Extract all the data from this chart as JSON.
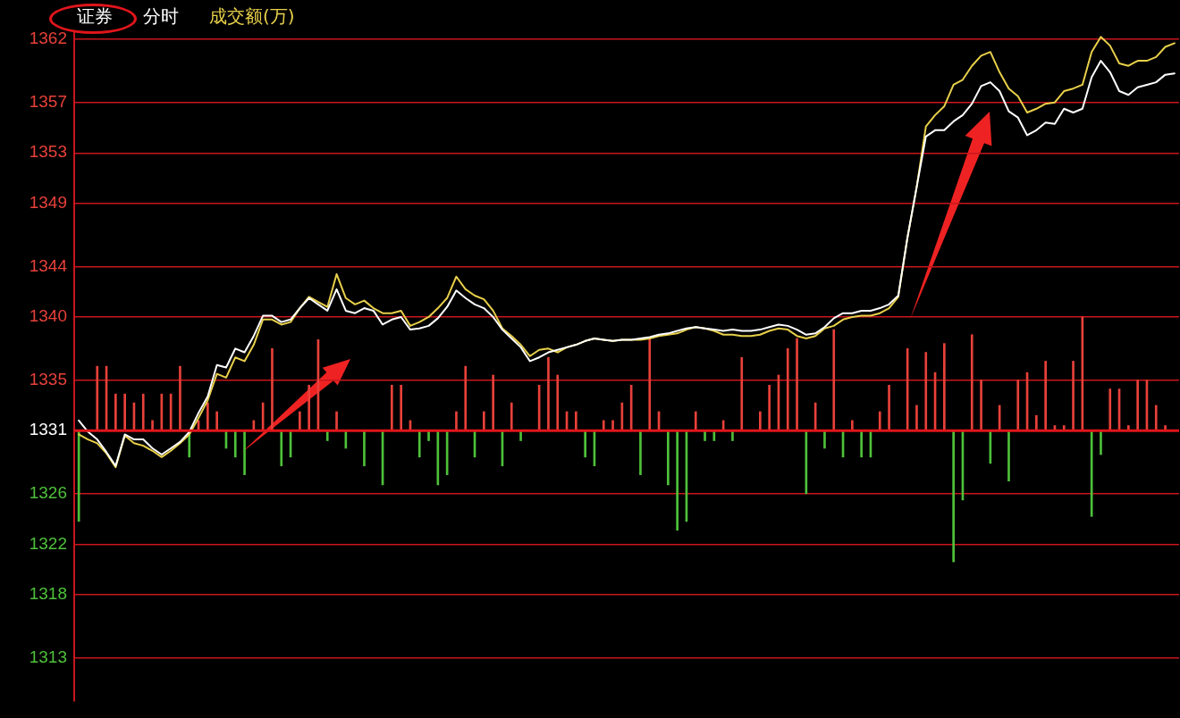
{
  "chart_data": {
    "type": "line",
    "title": "证券",
    "subtitle": "分时",
    "annotations": [
      "成交额(万)"
    ],
    "categories": [
      null,
      null,
      null,
      null,
      null,
      null,
      null,
      null,
      null,
      null,
      null,
      null,
      null,
      null,
      null,
      null,
      null,
      null,
      null,
      null,
      null,
      null,
      null,
      null,
      null,
      null,
      null,
      null,
      null,
      null,
      null,
      null,
      null,
      null,
      null,
      null,
      null,
      null,
      null,
      null,
      null,
      null,
      null,
      null,
      null,
      null,
      null,
      null,
      null,
      null,
      null,
      null,
      null,
      null,
      null,
      null,
      null,
      null,
      null,
      null,
      null,
      null,
      null,
      null,
      null,
      null,
      null,
      null,
      null,
      null,
      null,
      null,
      null,
      null,
      null,
      null,
      null,
      null,
      null,
      null,
      null,
      null,
      null,
      null,
      null,
      null,
      null,
      null,
      null,
      null,
      null,
      null,
      null,
      null,
      null,
      null,
      null,
      null,
      null,
      null,
      null,
      null,
      null,
      null,
      null,
      null,
      null,
      null,
      null,
      null,
      null,
      null,
      null,
      null,
      null,
      null,
      null,
      null,
      null,
      null
    ],
    "series": [
      {
        "type": "bar",
        "values": [
          -7.2,
          null,
          5.1,
          5.1,
          2.9,
          2.9,
          2.2,
          2.9,
          0.8,
          2.9,
          2.9,
          5.1,
          -2.1,
          0.8,
          2.2,
          1.5,
          -1.4,
          -2.1,
          -3.5,
          0.8,
          2.2,
          6.5,
          -2.8,
          -2.1,
          1.5,
          3.6,
          7.2,
          -0.8,
          1.5,
          -1.4,
          null,
          -2.8,
          null,
          -4.3,
          3.6,
          3.6,
          0.8,
          -2.1,
          -0.8,
          -4.3,
          -3.5,
          1.5,
          5.1,
          -2.1,
          1.5,
          4.4,
          -2.8,
          2.2,
          -0.8,
          null,
          3.6,
          5.8,
          4.4,
          1.5,
          1.5,
          -2.1,
          -2.8,
          0.8,
          0.8,
          2.2,
          3.6,
          -3.5,
          7.3,
          1.5,
          -4.3,
          -7.9,
          -7.2,
          1.5,
          -0.8,
          -0.8,
          0.8,
          -0.8,
          5.8,
          null,
          1.5,
          3.6,
          4.4,
          6.5,
          7.3,
          -5.0,
          2.2,
          -1.4,
          8.0,
          -2.1,
          0.8,
          -2.1,
          -2.1,
          1.5,
          3.6,
          null,
          6.5,
          2.0,
          6.2,
          4.6,
          6.9,
          -10.4,
          -5.5,
          7.6,
          4.0,
          -2.6,
          2.0,
          -4.0,
          4.0,
          4.6,
          1.2,
          5.5,
          0.4,
          0.4,
          5.5,
          9.0,
          -6.8,
          -1.9,
          3.3,
          3.3,
          0.4,
          4.0,
          4.0,
          2.0,
          0.4,
          null
        ],
        "colors": [
          "#4ec13a",
          null,
          "#e8413a",
          "#e8413a",
          "#e8413a",
          "#e8413a",
          "#e8413a",
          "#e8413a",
          "#e8413a",
          "#e8413a",
          "#e8413a",
          "#e8413a",
          "#4ec13a",
          "#e8413a",
          "#e8413a",
          "#e8413a",
          "#4ec13a",
          "#4ec13a",
          "#4ec13a",
          "#e8413a",
          "#e8413a",
          "#e8413a",
          "#4ec13a",
          "#4ec13a",
          "#e8413a",
          "#e8413a",
          "#e8413a",
          "#4ec13a",
          "#e8413a",
          "#4ec13a",
          null,
          "#4ec13a",
          null,
          "#4ec13a",
          "#e8413a",
          "#e8413a",
          "#e8413a",
          "#4ec13a",
          "#4ec13a",
          "#4ec13a",
          "#4ec13a",
          "#e8413a",
          "#e8413a",
          "#4ec13a",
          "#e8413a",
          "#e8413a",
          "#4ec13a",
          "#e8413a",
          "#4ec13a",
          null,
          "#e8413a",
          "#e8413a",
          "#e8413a",
          "#e8413a",
          "#e8413a",
          "#4ec13a",
          "#4ec13a",
          "#e8413a",
          "#e8413a",
          "#e8413a",
          "#e8413a",
          "#4ec13a",
          "#e8413a",
          "#e8413a",
          "#4ec13a",
          "#4ec13a",
          "#4ec13a",
          "#e8413a",
          "#4ec13a",
          "#4ec13a",
          "#e8413a",
          "#4ec13a",
          "#e8413a",
          null,
          "#e8413a",
          "#e8413a",
          "#e8413a",
          "#e8413a",
          "#e8413a",
          "#4ec13a",
          "#e8413a",
          "#4ec13a",
          "#e8413a",
          "#4ec13a",
          "#e8413a",
          "#4ec13a",
          "#4ec13a",
          "#e8413a",
          "#e8413a",
          null,
          "#e8413a",
          "#e8413a",
          "#e8413a",
          "#e8413a",
          "#e8413a",
          "#4ec13a",
          "#4ec13a",
          "#e8413a",
          "#e8413a",
          "#4ec13a",
          "#e8413a",
          "#4ec13a",
          "#e8413a",
          "#e8413a",
          "#e8413a",
          "#e8413a",
          "#e8413a",
          "#e8413a",
          "#e8413a",
          "#e8413a",
          "#4ec13a",
          "#4ec13a",
          "#e8413a",
          "#e8413a",
          "#e8413a",
          "#e8413a",
          "#e8413a",
          "#e8413a",
          "#e8413a",
          null
        ],
        "base": [
          1331,
          null,
          1331,
          1331,
          1331,
          1331,
          1331,
          1331,
          1331,
          1331,
          1331,
          1331,
          1331,
          1331,
          1331,
          1331,
          1331,
          1331,
          1331,
          1331,
          1331,
          1331,
          1331,
          1331,
          1331,
          1331,
          1331,
          1331,
          1331,
          1331,
          null,
          1331,
          null,
          1331,
          1331,
          1331,
          1331,
          1331,
          1331,
          1331,
          1331,
          1331,
          1331,
          1331,
          1331,
          1331,
          1331,
          1331,
          1331,
          null,
          1331,
          1331,
          1331,
          1331,
          1331,
          1331,
          1331,
          1331,
          1331,
          1331,
          1331,
          1331,
          1331,
          1331,
          1331,
          1331,
          1331,
          1331,
          1331,
          1331,
          1331,
          1331,
          1331,
          null,
          1331,
          1331,
          1331,
          1331,
          1331,
          1331,
          1331,
          1331,
          1331,
          1331,
          1331,
          1331,
          1331,
          1331,
          1331,
          null,
          1331,
          1331,
          1331,
          1331,
          1331,
          1331,
          1331,
          1331,
          1331,
          1331,
          1331,
          1331,
          1331,
          1331,
          1331,
          1331,
          1331,
          1331,
          1331,
          1331,
          1331,
          1331,
          1331,
          1331,
          1331,
          1331,
          1331,
          1331,
          1331,
          null
        ]
      },
      {
        "color": "#ffffff",
        "values": [
          1331.8,
          1330.9,
          1330.3,
          1329.3,
          1328.2,
          1330.7,
          1330.3,
          1330.3,
          1329.6,
          1329.1,
          1329.6,
          1330.1,
          1330.9,
          1332.4,
          1333.7,
          1336.2,
          1336.0,
          1337.5,
          1337.2,
          1338.5,
          1340.1,
          1340.1,
          1339.6,
          1339.8,
          1340.7,
          1341.5,
          1341.0,
          1340.5,
          1342.2,
          1340.5,
          1340.3,
          1340.7,
          1340.5,
          1339.4,
          1339.8,
          1340.0,
          1339.0,
          1339.1,
          1339.3,
          1339.9,
          1340.8,
          1342.1,
          1341.5,
          1341.0,
          1340.7,
          1340.0,
          1339.0,
          1338.3,
          1337.6,
          1336.5,
          1336.8,
          1337.2,
          1337.4,
          1337.6,
          1337.8,
          1338.1,
          1338.3,
          1338.2,
          1338.1,
          1338.2,
          1338.2,
          1338.3,
          1338.4,
          1338.6,
          1338.7,
          1338.9,
          1339.1,
          1339.2,
          1339.1,
          1339.0,
          1338.9,
          1339.0,
          1338.9,
          1338.9,
          1339.0,
          1339.2,
          1339.4,
          1339.3,
          1339.0,
          1338.6,
          1338.7,
          1339.2,
          1339.9,
          1340.3,
          1340.3,
          1340.5,
          1340.5,
          1340.7,
          1341.0,
          1341.7,
          1346.3,
          1350.3,
          1354.3,
          1354.8,
          1354.8,
          1355.5,
          1356.0,
          1356.9,
          1358.3,
          1358.6,
          1357.9,
          1356.3,
          1355.8,
          1354.4,
          1354.8,
          1355.4,
          1355.3,
          1356.5,
          1356.2,
          1356.5,
          1359.0,
          1360.3,
          1359.4,
          1357.9,
          1357.6,
          1358.2,
          1358.4,
          1358.6,
          1359.2,
          1359.3
        ]
      },
      {
        "color": "#e8d04a",
        "values": [
          1330.7,
          1330.3,
          1330.0,
          1329.2,
          1328.1,
          1330.6,
          1330.0,
          1329.8,
          1329.4,
          1328.9,
          1329.4,
          1330.0,
          1330.7,
          1332.0,
          1333.4,
          1335.5,
          1335.2,
          1336.8,
          1336.5,
          1337.8,
          1339.8,
          1339.8,
          1339.4,
          1339.6,
          1340.7,
          1341.6,
          1341.2,
          1340.8,
          1343.4,
          1341.5,
          1341.0,
          1341.3,
          1340.7,
          1340.3,
          1340.3,
          1340.5,
          1339.3,
          1339.6,
          1340.0,
          1340.7,
          1341.5,
          1343.2,
          1342.2,
          1341.7,
          1341.4,
          1340.5,
          1339.1,
          1338.5,
          1337.8,
          1336.9,
          1337.4,
          1337.5,
          1337.2,
          1337.6,
          1337.8,
          1338.1,
          1338.3,
          1338.2,
          1338.1,
          1338.2,
          1338.2,
          1338.2,
          1338.3,
          1338.5,
          1338.6,
          1338.7,
          1339.0,
          1339.2,
          1339.1,
          1338.9,
          1338.6,
          1338.6,
          1338.5,
          1338.5,
          1338.6,
          1338.9,
          1339.1,
          1339.0,
          1338.5,
          1338.3,
          1338.5,
          1339.1,
          1339.3,
          1339.8,
          1340.0,
          1340.1,
          1340.1,
          1340.3,
          1340.7,
          1341.6,
          1346.3,
          1350.3,
          1355.1,
          1356.0,
          1356.7,
          1358.4,
          1358.8,
          1359.9,
          1360.7,
          1361.0,
          1359.4,
          1358.1,
          1357.5,
          1356.2,
          1356.5,
          1356.9,
          1357.0,
          1357.9,
          1358.1,
          1358.4,
          1361.0,
          1362.2,
          1361.5,
          1360.1,
          1359.9,
          1360.3,
          1360.3,
          1360.6,
          1361.4,
          1361.7
        ]
      }
    ],
    "ylim": [
      1309.6,
      1362.5
    ],
    "yticks": [
      1313,
      1318,
      1322,
      1326,
      1331,
      1335,
      1340,
      1344,
      1349,
      1353,
      1357,
      1362
    ],
    "ref_lines": [
      {
        "axis": "y",
        "value": 1331,
        "color": "#e0151b"
      }
    ],
    "grid": "y",
    "tick_labels": "y",
    "marker": "none",
    "line_style": "solid"
  }
}
